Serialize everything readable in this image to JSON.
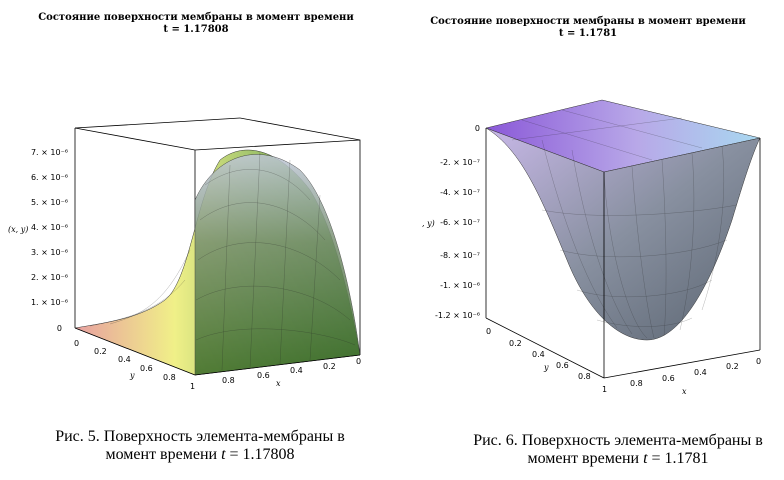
{
  "figures": [
    {
      "title_line1": "Состояние поверхности мембраны в момент времени",
      "title_line2": "t = 1.17808",
      "z_axis_label": "(x, y)",
      "z_ticks": [
        "0",
        "1. × 10⁻⁶",
        "2. × 10⁻⁶",
        "3. × 10⁻⁶",
        "4. × 10⁻⁶",
        "5. × 10⁻⁶",
        "6. × 10⁻⁶",
        "7. × 10⁻⁶"
      ],
      "y_axis_label": "y",
      "y_ticks": [
        "0",
        "0.2",
        "0.4",
        "0.6",
        "0.8",
        "1"
      ],
      "x_axis_label": "x",
      "x_ticks": [
        "0.8",
        "0.6",
        "0.4",
        "0.2",
        "0"
      ],
      "caption_prefix": "Рис. 5. Поверхность элемента-мембраны в",
      "caption_mid": "момент времени ",
      "caption_var": "t",
      "caption_value": " = 1.17808"
    },
    {
      "title_line1": "Состояние поверхности мембраны в момент времени",
      "title_line2": "t = 1.1781",
      "z_axis_label": ", y)",
      "z_ticks": [
        "0",
        "-2. × 10⁻⁷",
        "-4. × 10⁻⁷",
        "-6. × 10⁻⁷",
        "-8. × 10⁻⁷",
        "-1. × 10⁻⁶",
        "-1.2 × 10⁻⁶"
      ],
      "y_axis_label": "y",
      "y_ticks": [
        "0",
        "0.2",
        "0.4",
        "0.6",
        "0.8"
      ],
      "x_axis_label": "x",
      "x_ticks": [
        "1",
        "0.8",
        "0.6",
        "0.4",
        "0.2",
        "0"
      ],
      "caption_prefix": "Рис. 6. Поверхность элемента-мембраны в",
      "caption_mid": "момент времени ",
      "caption_var": "t",
      "caption_value": " = 1.1781"
    }
  ],
  "colors": {
    "fig5_surface": [
      "#e8a0a0",
      "#f0f088",
      "#a8c870",
      "#4a8a30",
      "#c0c8d8"
    ],
    "fig6_surface": [
      "#8a58d8",
      "#b8a8e8",
      "#a8d8f0",
      "#707880"
    ]
  }
}
